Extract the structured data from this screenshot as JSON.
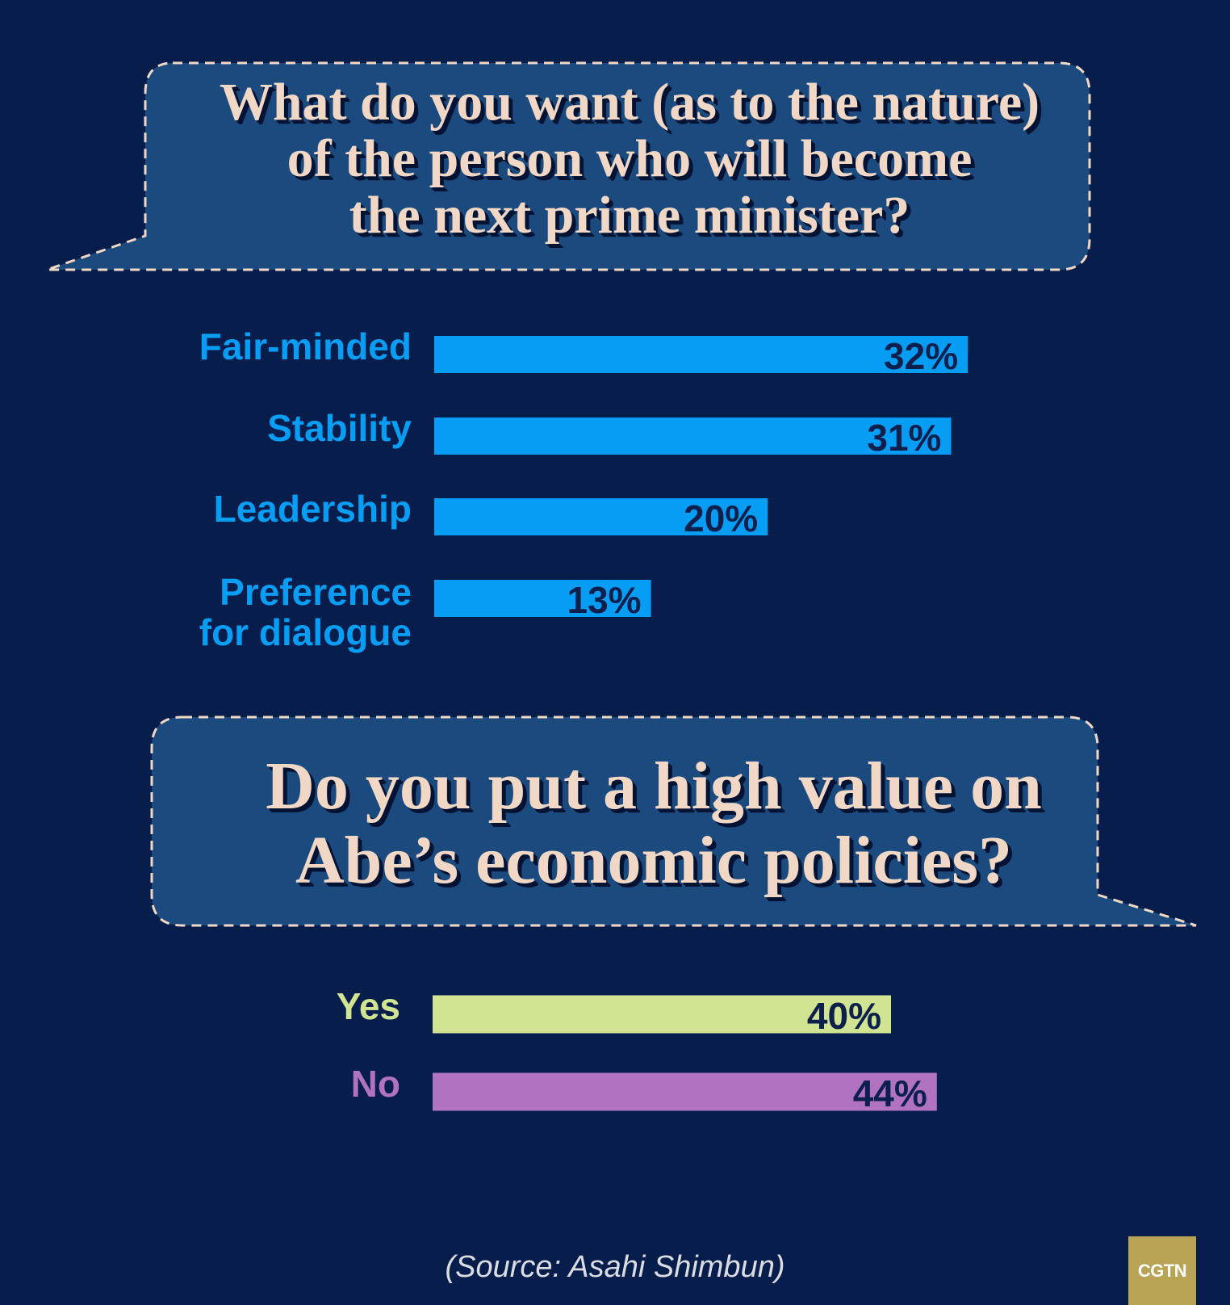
{
  "colors": {
    "background": "#071e4c",
    "bubble_fill": "#1b4a7e",
    "bubble_border": "#f1d7c5",
    "question_text": "#f1d7c5",
    "value_text": "#0c1f4d",
    "section1_bar": "#069ef4",
    "yes_bar": "#d0e492",
    "no_bar": "#b272c2"
  },
  "questions": {
    "q1": "What do you want (as to the nature)\nof the person who will become\nthe next prime minister?",
    "q2": "Do you put a high value on\nAbe’s economic policies?"
  },
  "chart_data": [
    {
      "type": "bar",
      "orientation": "horizontal",
      "title": "What do you want (as to the nature) of the person who will become the next prime minister?",
      "categories": [
        "Fair-minded",
        "Stability",
        "Leadership",
        "Preference\nfor dialogue"
      ],
      "values": [
        32,
        31,
        20,
        13
      ],
      "value_labels": [
        "32%",
        "31%",
        "20%",
        "13%"
      ],
      "unit": "%",
      "grid": false,
      "legend": "none",
      "colors": [
        "#069ef4",
        "#069ef4",
        "#069ef4",
        "#069ef4"
      ],
      "label_colors": [
        "#069ef4",
        "#069ef4",
        "#069ef4",
        "#069ef4"
      ]
    },
    {
      "type": "bar",
      "orientation": "horizontal",
      "title": "Do you put a high value on Abe’s economic policies?",
      "categories": [
        "Yes",
        "No"
      ],
      "values": [
        40,
        44
      ],
      "value_labels": [
        "40%",
        "44%"
      ],
      "unit": "%",
      "grid": false,
      "legend": "none",
      "colors": [
        "#d0e492",
        "#b272c2"
      ],
      "label_colors": [
        "#d0e492",
        "#b272c2"
      ]
    }
  ],
  "source": "(Source: Asahi Shimbun)",
  "logo": "CGTN"
}
